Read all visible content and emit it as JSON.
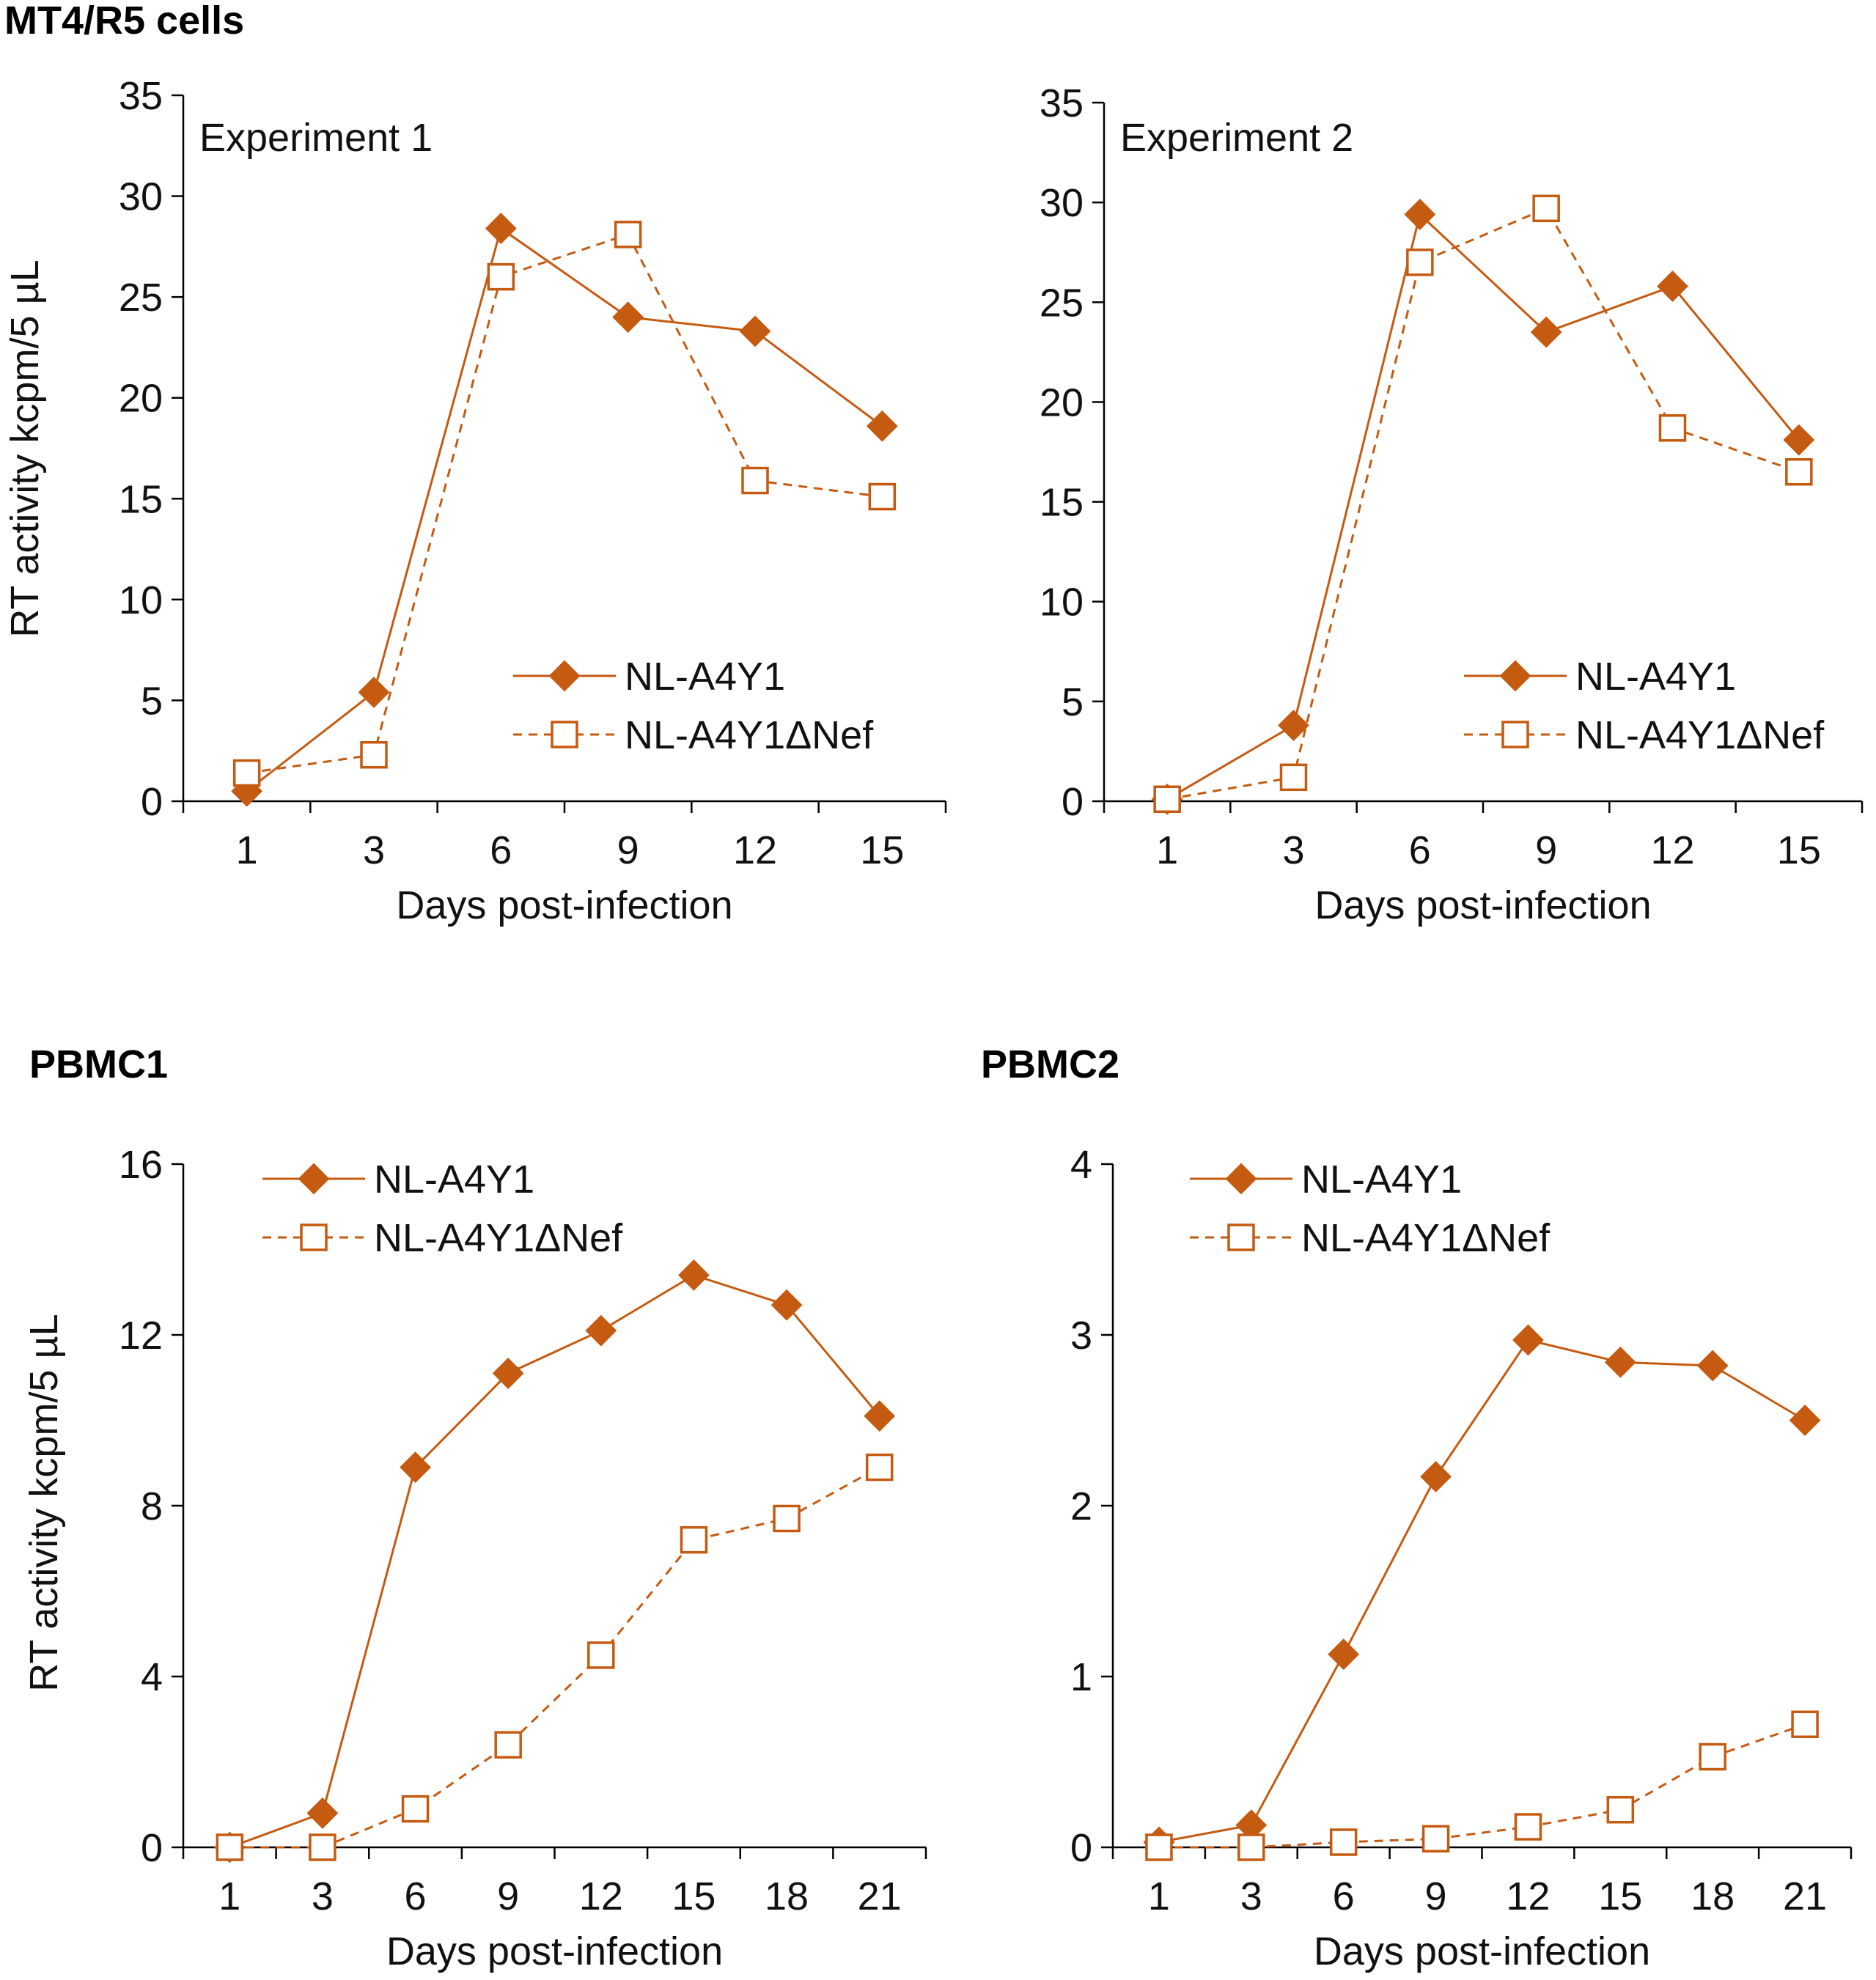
{
  "colors": {
    "series": "#C55A11",
    "axis": "#000000",
    "text": "#111111"
  },
  "section_labels": {
    "top": "MT4/R5 cells",
    "pbmc1": "PBMC1",
    "pbmc2": "PBMC2"
  },
  "chart_data": [
    {
      "id": "exp1",
      "type": "line",
      "section": "MT4/R5 cells",
      "annotation": "Experiment 1",
      "xlabel": "Days post-infection",
      "ylabel": "RT activity kcpm/5 µL",
      "categories": [
        "1",
        "3",
        "6",
        "9",
        "12",
        "15"
      ],
      "ylim": [
        0,
        35
      ],
      "yticks": [
        0,
        5,
        10,
        15,
        20,
        25,
        30,
        35
      ],
      "legend_position": "lower-right",
      "series": [
        {
          "name": "NL-A4Y1",
          "marker": "diamond",
          "line": "solid",
          "values": [
            0.5,
            5.4,
            28.4,
            24.0,
            23.3,
            18.6
          ]
        },
        {
          "name": "NL-A4Y1ΔNef",
          "marker": "open-square",
          "line": "dashed",
          "values": [
            1.4,
            2.3,
            26.0,
            28.1,
            15.9,
            15.1
          ]
        }
      ]
    },
    {
      "id": "exp2",
      "type": "line",
      "section": "MT4/R5 cells",
      "annotation": "Experiment 2",
      "xlabel": "Days post-infection",
      "ylabel": "",
      "categories": [
        "1",
        "3",
        "6",
        "9",
        "12",
        "15"
      ],
      "ylim": [
        0,
        35
      ],
      "yticks": [
        0,
        5,
        10,
        15,
        20,
        25,
        30,
        35
      ],
      "legend_position": "lower-right",
      "series": [
        {
          "name": "NL-A4Y1",
          "marker": "diamond",
          "line": "solid",
          "values": [
            0.1,
            3.8,
            29.4,
            23.5,
            25.8,
            18.1
          ]
        },
        {
          "name": "NL-A4Y1ΔNef",
          "marker": "open-square",
          "line": "dashed",
          "values": [
            0.1,
            1.2,
            27.0,
            29.7,
            18.7,
            16.5
          ]
        }
      ]
    },
    {
      "id": "pbmc1",
      "type": "line",
      "section": "PBMC1",
      "annotation": "",
      "xlabel": "Days post-infection",
      "ylabel": "RT activity kcpm/5 µL",
      "categories": [
        "1",
        "3",
        "6",
        "9",
        "12",
        "15",
        "18",
        "21"
      ],
      "ylim": [
        0,
        16
      ],
      "yticks": [
        0,
        4,
        8,
        12,
        16
      ],
      "legend_position": "top-left",
      "series": [
        {
          "name": "NL-A4Y1",
          "marker": "diamond",
          "line": "solid",
          "values": [
            0.0,
            0.8,
            8.9,
            11.1,
            12.1,
            13.4,
            12.7,
            10.1
          ]
        },
        {
          "name": "NL-A4Y1ΔNef",
          "marker": "open-square",
          "line": "dashed",
          "values": [
            0.0,
            0.0,
            0.9,
            2.4,
            4.5,
            7.2,
            7.7,
            8.9
          ]
        }
      ]
    },
    {
      "id": "pbmc2",
      "type": "line",
      "section": "PBMC2",
      "annotation": "",
      "xlabel": "Days post-infection",
      "ylabel": "",
      "categories": [
        "1",
        "3",
        "6",
        "9",
        "12",
        "15",
        "18",
        "21"
      ],
      "ylim": [
        0,
        4
      ],
      "yticks": [
        0,
        1,
        2,
        3,
        4
      ],
      "legend_position": "top-left",
      "series": [
        {
          "name": "NL-A4Y1",
          "marker": "diamond",
          "line": "solid",
          "values": [
            0.03,
            0.13,
            1.13,
            2.17,
            2.97,
            2.84,
            2.82,
            2.5
          ]
        },
        {
          "name": "NL-A4Y1ΔNef",
          "marker": "open-square",
          "line": "dashed",
          "values": [
            0.0,
            0.0,
            0.03,
            0.05,
            0.12,
            0.22,
            0.53,
            0.72
          ]
        }
      ]
    }
  ]
}
